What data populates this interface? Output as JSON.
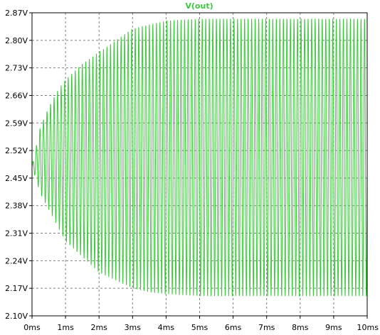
{
  "chart_data": {
    "type": "line",
    "title": "V(out)",
    "xlabel": "",
    "ylabel": "",
    "xlim": [
      0,
      10
    ],
    "ylim": [
      2.1,
      2.87
    ],
    "x_ticks": [
      0,
      1,
      2,
      3,
      4,
      5,
      6,
      7,
      8,
      9,
      10
    ],
    "x_tick_labels": [
      "0ms",
      "1ms",
      "2ms",
      "3ms",
      "4ms",
      "5ms",
      "6ms",
      "7ms",
      "8ms",
      "9ms",
      "10ms"
    ],
    "y_ticks": [
      2.1,
      2.17,
      2.24,
      2.31,
      2.38,
      2.45,
      2.52,
      2.59,
      2.66,
      2.73,
      2.8,
      2.87
    ],
    "y_tick_labels": [
      "2.10V",
      "2.17V",
      "2.24V",
      "2.31V",
      "2.38V",
      "2.45V",
      "2.52V",
      "2.59V",
      "2.66V",
      "2.73V",
      "2.80V",
      "2.87V"
    ],
    "grid": true,
    "series": [
      {
        "name": "V(out)",
        "color": "#3cc83c",
        "x_unit": "ms",
        "x": [
          0,
          0.25,
          0.5,
          0.75,
          1.0,
          1.5,
          2.0,
          2.5,
          3.0,
          3.5,
          4.0,
          5.0,
          6.0,
          7.0,
          8.0,
          9.0,
          10.0
        ],
        "upper_envelope_V": [
          2.48,
          2.58,
          2.63,
          2.67,
          2.7,
          2.74,
          2.77,
          2.8,
          2.83,
          2.84,
          2.85,
          2.855,
          2.855,
          2.855,
          2.855,
          2.855,
          2.855
        ],
        "lower_envelope_V": [
          2.48,
          2.41,
          2.37,
          2.33,
          2.29,
          2.25,
          2.21,
          2.19,
          2.17,
          2.16,
          2.155,
          2.15,
          2.15,
          2.15,
          2.15,
          2.15,
          2.15
        ],
        "oscillation_frequency_kHz": 9.5,
        "final_value_V": 2.4
      }
    ],
    "axis_color": "#000000",
    "grid_color": "#808080",
    "background": "#ffffff"
  }
}
